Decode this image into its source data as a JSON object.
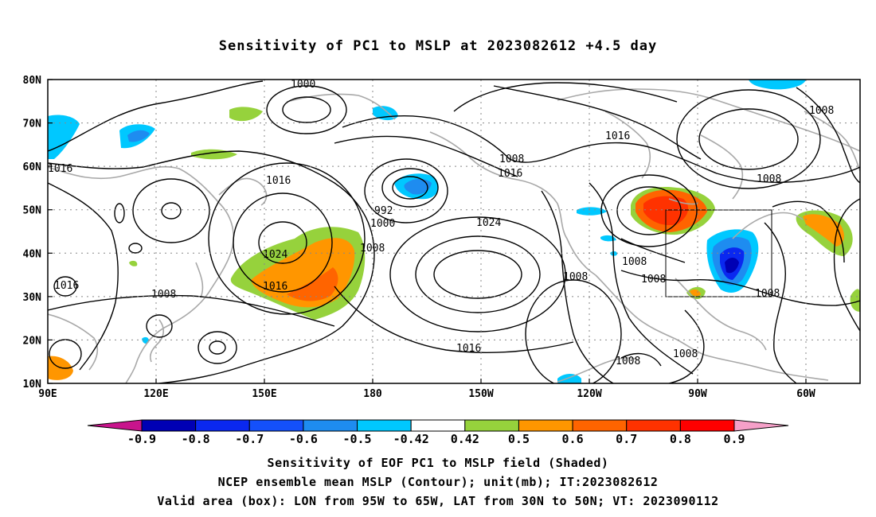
{
  "title": "Sensitivity of PC1 to MSLP at 2023082612 +4.5 day",
  "lat_labels": [
    "80N",
    "70N",
    "60N",
    "50N",
    "40N",
    "30N",
    "20N",
    "10N"
  ],
  "lon_labels": [
    "90E",
    "120E",
    "150E",
    "180",
    "150W",
    "120W",
    "90W",
    "60W"
  ],
  "contour_labels": {
    "c1000a": "1000",
    "c1008a": "1008",
    "c1016a": "1016",
    "c1016b": "1016",
    "c1008b": "1008",
    "c1016c": "1016",
    "c1008c": "1008",
    "c992": "992",
    "c1000b": "1000",
    "c1024a": "1024",
    "c1008d": "1008",
    "c1024b": "1024",
    "c1016d": "1016",
    "c1016e": "1016",
    "c1008e": "1008",
    "c1008f": "1008",
    "c1008g": "1008",
    "c1008h": "1008",
    "c1016f": "1016",
    "c1008i": "1008",
    "c1008j": "1008",
    "c1008k": "1008"
  },
  "colorbar": {
    "labels": [
      "-0.9",
      "-0.8",
      "-0.7",
      "-0.6",
      "-0.5",
      "-0.42",
      "0.42",
      "0.5",
      "0.6",
      "0.7",
      "0.8",
      "0.9"
    ],
    "colors": [
      "#0000b4",
      "#0a28f0",
      "#1450fa",
      "#1e8cf0",
      "#00c8ff",
      "#ffffff",
      "#96d23c",
      "#ff9600",
      "#ff6400",
      "#ff3200",
      "#ff0000"
    ],
    "low_end": "#c8148c",
    "high_end": "#f5a0c8"
  },
  "captions": {
    "line1": "Sensitivity of EOF PC1 to MSLP field (Shaded)",
    "line2": "NCEP ensemble mean MSLP (Contour); unit(mb); IT:2023082612",
    "line3": "Valid area (box): LON from 95W to 65W, LAT from 30N to 50N; VT: 2023090112"
  }
}
